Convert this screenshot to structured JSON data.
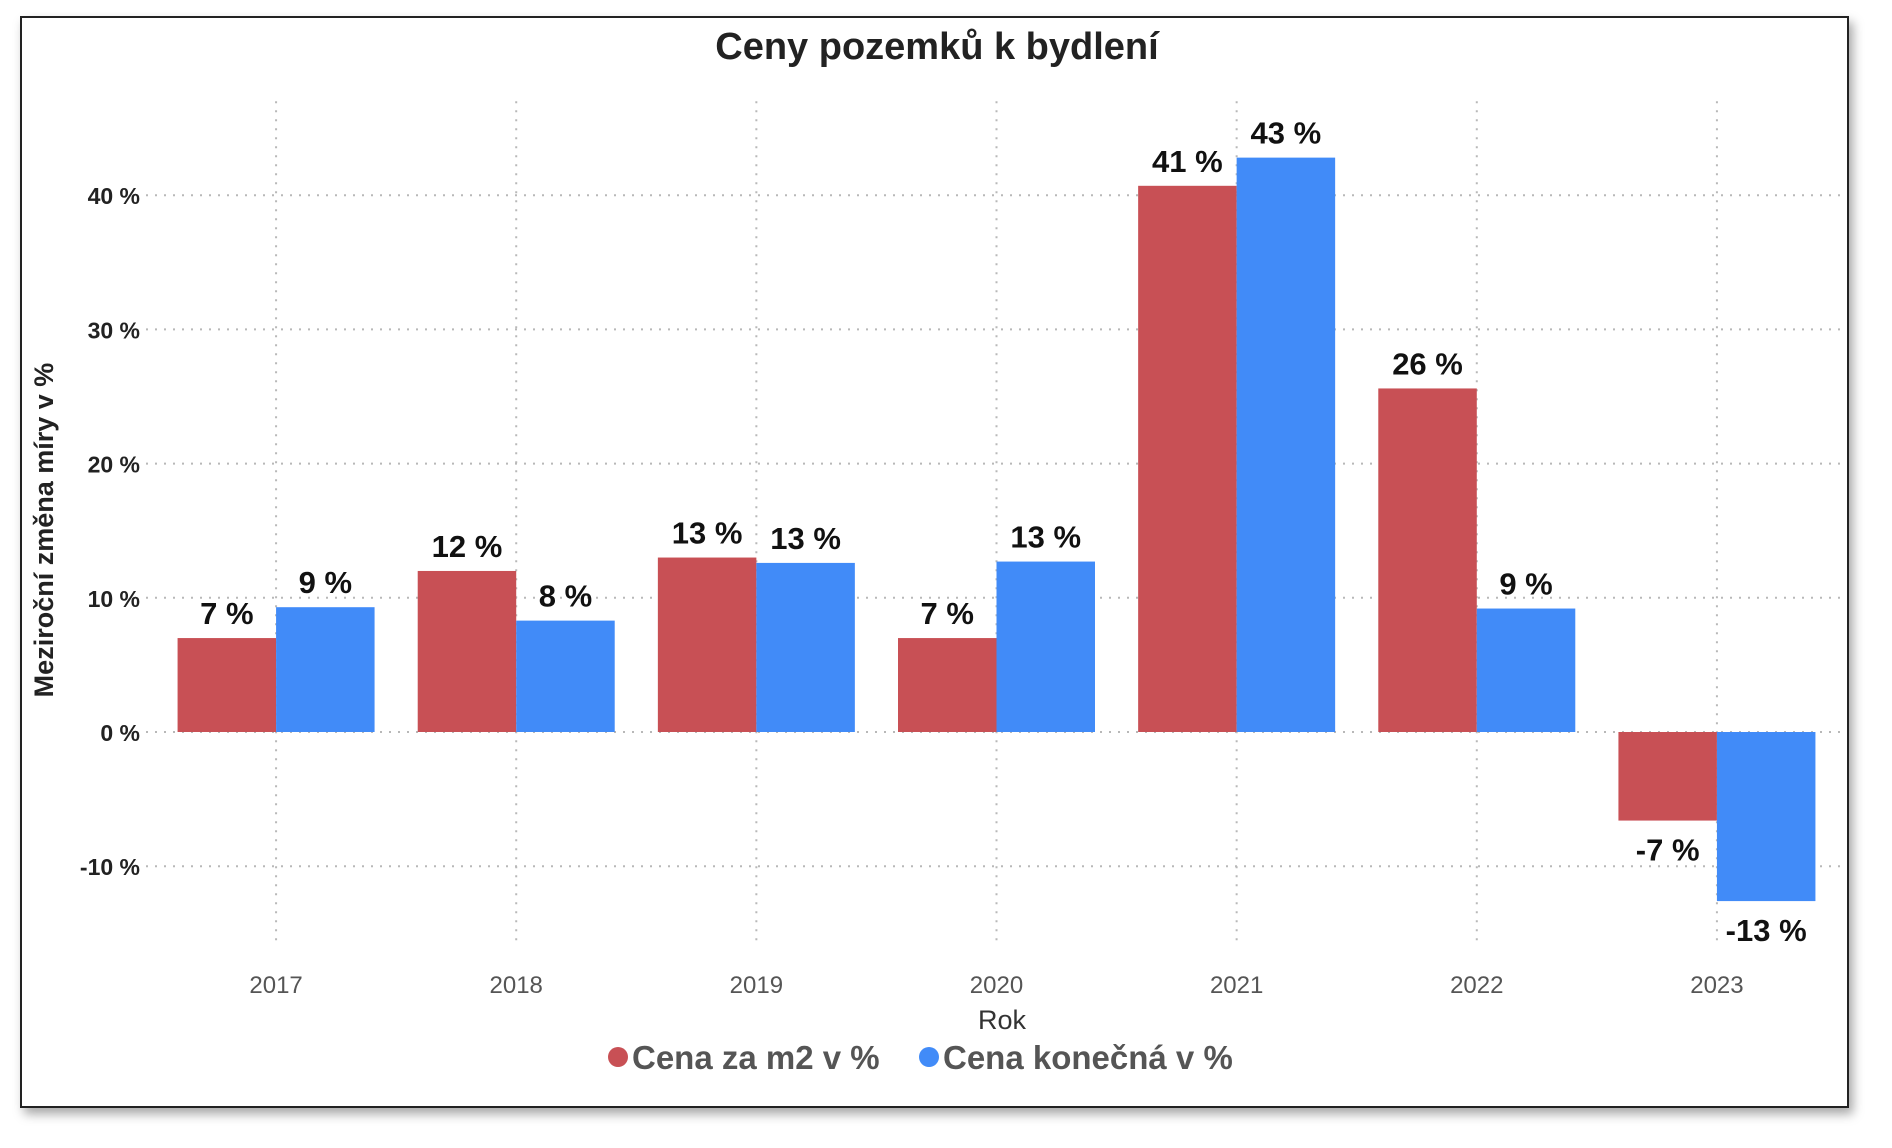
{
  "chart_data": {
    "type": "bar",
    "title": "Ceny pozemků k bydlení",
    "xlabel": "Rok",
    "ylabel": "Meziroční změna míry v %",
    "categories": [
      "2017",
      "2018",
      "2019",
      "2020",
      "2021",
      "2022",
      "2023"
    ],
    "series": [
      {
        "name": "Cena za m2 v %",
        "color": "#c85055",
        "values": [
          7,
          12,
          13,
          7,
          40.7,
          25.6,
          -6.6
        ],
        "labels": [
          "7 %",
          "12 %",
          "13 %",
          "7 %",
          "41 %",
          "26 %",
          "-7 %"
        ]
      },
      {
        "name": "Cena konečná v %",
        "color": "#418bf8",
        "values": [
          9.3,
          8.3,
          12.6,
          12.7,
          42.8,
          9.2,
          -12.6
        ],
        "labels": [
          "9 %",
          "8 %",
          "13 %",
          "13 %",
          "43 %",
          "9 %",
          "-13 %"
        ]
      }
    ],
    "ylim": [
      -16,
      47
    ],
    "yticks": [
      -10,
      0,
      10,
      20,
      30,
      40
    ],
    "ytick_labels": [
      "-10 %",
      "0 %",
      "10 %",
      "20 %",
      "30 %",
      "40 %"
    ],
    "grid": true,
    "legend_position": "bottom-center"
  }
}
